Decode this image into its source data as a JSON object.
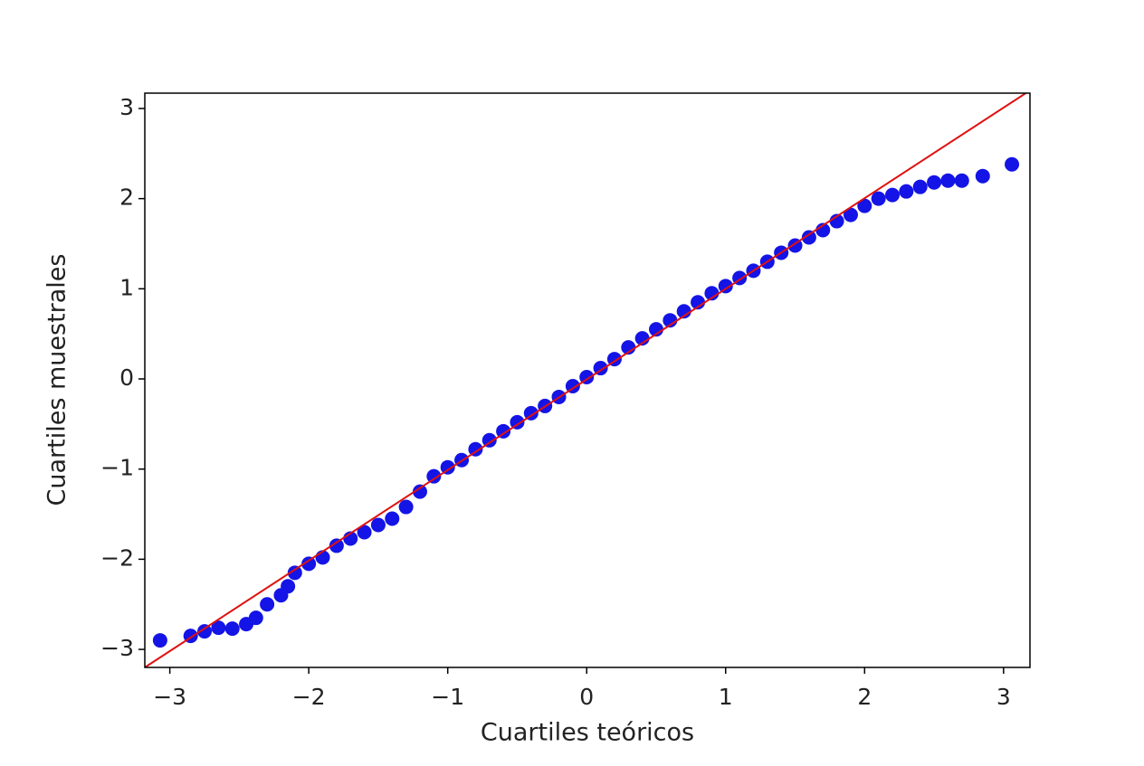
{
  "chart_data": {
    "type": "scatter",
    "xlabel": "Cuartiles teóricos",
    "ylabel": "Cuartiles muestrales",
    "xlim": [
      -3.18,
      3.19
    ],
    "ylim": [
      -3.2,
      3.17
    ],
    "xticks": [
      {
        "value": -3,
        "label": "−3"
      },
      {
        "value": -2,
        "label": "−2"
      },
      {
        "value": -1,
        "label": "−1"
      },
      0,
      1,
      2,
      3
    ],
    "yticks": [
      {
        "value": -3,
        "label": "−3"
      },
      {
        "value": -2,
        "label": "−2"
      },
      {
        "value": -1,
        "label": "−1"
      },
      0,
      1,
      2,
      3
    ],
    "grid": false,
    "series": [
      {
        "type": "scatter",
        "color": "#1414e6",
        "x": [
          -3.07,
          -2.85,
          -2.75,
          -2.65,
          -2.55,
          -2.45,
          -2.38,
          -2.3,
          -2.2,
          -2.15,
          -2.1,
          -2.0,
          -1.9,
          -1.8,
          -1.7,
          -1.6,
          -1.5,
          -1.4,
          -1.3,
          -1.2,
          -1.1,
          -1.0,
          -0.9,
          -0.8,
          -0.7,
          -0.6,
          -0.5,
          -0.4,
          -0.3,
          -0.2,
          -0.1,
          0,
          0.1,
          0.2,
          0.3,
          0.4,
          0.5,
          0.6,
          0.7,
          0.8,
          0.9,
          1.0,
          1.1,
          1.2,
          1.3,
          1.4,
          1.5,
          1.6,
          1.7,
          1.8,
          1.9,
          2.0,
          2.1,
          2.2,
          2.3,
          2.4,
          2.5,
          2.6,
          2.7,
          2.85,
          3.06
        ],
        "values": [
          -2.9,
          -2.85,
          -2.8,
          -2.76,
          -2.77,
          -2.72,
          -2.65,
          -2.5,
          -2.4,
          -2.3,
          -2.15,
          -2.05,
          -1.98,
          -1.85,
          -1.77,
          -1.7,
          -1.62,
          -1.55,
          -1.42,
          -1.25,
          -1.08,
          -0.98,
          -0.9,
          -0.78,
          -0.68,
          -0.58,
          -0.48,
          -0.38,
          -0.3,
          -0.2,
          -0.08,
          0.02,
          0.12,
          0.22,
          0.35,
          0.45,
          0.55,
          0.65,
          0.75,
          0.85,
          0.95,
          1.03,
          1.12,
          1.2,
          1.3,
          1.4,
          1.48,
          1.57,
          1.65,
          1.75,
          1.82,
          1.92,
          2.0,
          2.04,
          2.08,
          2.13,
          2.18,
          2.2,
          2.2,
          2.25,
          2.38
        ]
      },
      {
        "type": "line",
        "color": "#e01010",
        "x": [
          -3.18,
          3.16
        ],
        "values": [
          -3.2,
          3.17
        ]
      }
    ]
  }
}
